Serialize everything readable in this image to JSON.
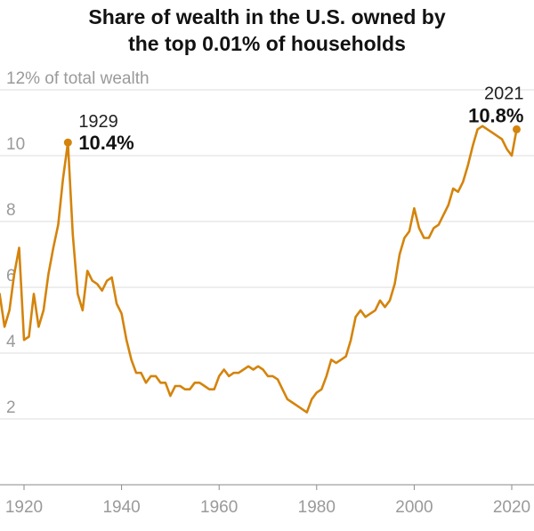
{
  "chart_data": {
    "type": "line",
    "title_line1": "Share of wealth in the U.S. owned by",
    "title_line2": "the top 0.01% of households",
    "ylabel_top": "12% of total wealth",
    "yticks": [
      "2",
      "4",
      "6",
      "8",
      "10"
    ],
    "ytick_values": [
      2,
      4,
      6,
      8,
      10
    ],
    "xticks": [
      "1920",
      "1940",
      "1960",
      "1980",
      "2000",
      "2020"
    ],
    "xtick_values": [
      1920,
      1940,
      1960,
      1980,
      2000,
      2020
    ],
    "xlim": [
      1918,
      2022
    ],
    "ylim": [
      0,
      12
    ],
    "color": "#d4840c",
    "series": [
      {
        "name": "Top 0.01% wealth share",
        "x": [
          1913,
          1914,
          1915,
          1916,
          1917,
          1918,
          1919,
          1920,
          1921,
          1922,
          1923,
          1924,
          1925,
          1926,
          1927,
          1928,
          1929,
          1930,
          1931,
          1932,
          1933,
          1934,
          1935,
          1936,
          1937,
          1938,
          1939,
          1940,
          1941,
          1942,
          1943,
          1944,
          1945,
          1946,
          1947,
          1948,
          1949,
          1950,
          1951,
          1952,
          1953,
          1954,
          1955,
          1956,
          1957,
          1958,
          1959,
          1960,
          1961,
          1962,
          1963,
          1964,
          1965,
          1966,
          1967,
          1968,
          1969,
          1970,
          1971,
          1972,
          1973,
          1974,
          1975,
          1976,
          1977,
          1978,
          1979,
          1980,
          1981,
          1982,
          1983,
          1984,
          1985,
          1986,
          1987,
          1988,
          1989,
          1990,
          1991,
          1992,
          1993,
          1994,
          1995,
          1996,
          1997,
          1998,
          1999,
          2000,
          2001,
          2002,
          2003,
          2004,
          2005,
          2006,
          2007,
          2008,
          2009,
          2010,
          2011,
          2012,
          2013,
          2014,
          2015,
          2016,
          2017,
          2018,
          2019,
          2020,
          2021
        ],
        "values": [
          4.4,
          4.5,
          5.8,
          4.8,
          5.3,
          6.4,
          7.2,
          4.4,
          4.5,
          5.8,
          4.8,
          5.3,
          6.4,
          7.2,
          7.9,
          9.3,
          10.4,
          7.6,
          5.8,
          5.3,
          6.5,
          6.2,
          6.1,
          5.9,
          6.2,
          6.3,
          5.5,
          5.2,
          4.4,
          3.8,
          3.4,
          3.4,
          3.1,
          3.3,
          3.3,
          3.1,
          3.1,
          2.7,
          3.0,
          3.0,
          2.9,
          2.9,
          3.1,
          3.1,
          3.0,
          2.9,
          2.9,
          3.3,
          3.5,
          3.3,
          3.4,
          3.4,
          3.5,
          3.6,
          3.5,
          3.6,
          3.5,
          3.3,
          3.3,
          3.2,
          2.9,
          2.6,
          2.5,
          2.4,
          2.3,
          2.2,
          2.6,
          2.8,
          2.9,
          3.3,
          3.8,
          3.7,
          3.8,
          3.9,
          4.4,
          5.1,
          5.3,
          5.1,
          5.2,
          5.3,
          5.6,
          5.4,
          5.6,
          6.1,
          7.0,
          7.5,
          7.7,
          8.4,
          7.8,
          7.5,
          7.5,
          7.8,
          7.9,
          8.2,
          8.5,
          9.0,
          8.9,
          9.2,
          9.7,
          10.3,
          10.8,
          10.9,
          10.8,
          10.7,
          10.6,
          10.5,
          10.2,
          10.0,
          10.8
        ]
      }
    ],
    "annotations": [
      {
        "year_label": "1929",
        "value_label": "10.4%",
        "x": 1929,
        "y": 10.4
      },
      {
        "year_label": "2021",
        "value_label": "10.8%",
        "x": 2021,
        "y": 10.8
      }
    ]
  }
}
